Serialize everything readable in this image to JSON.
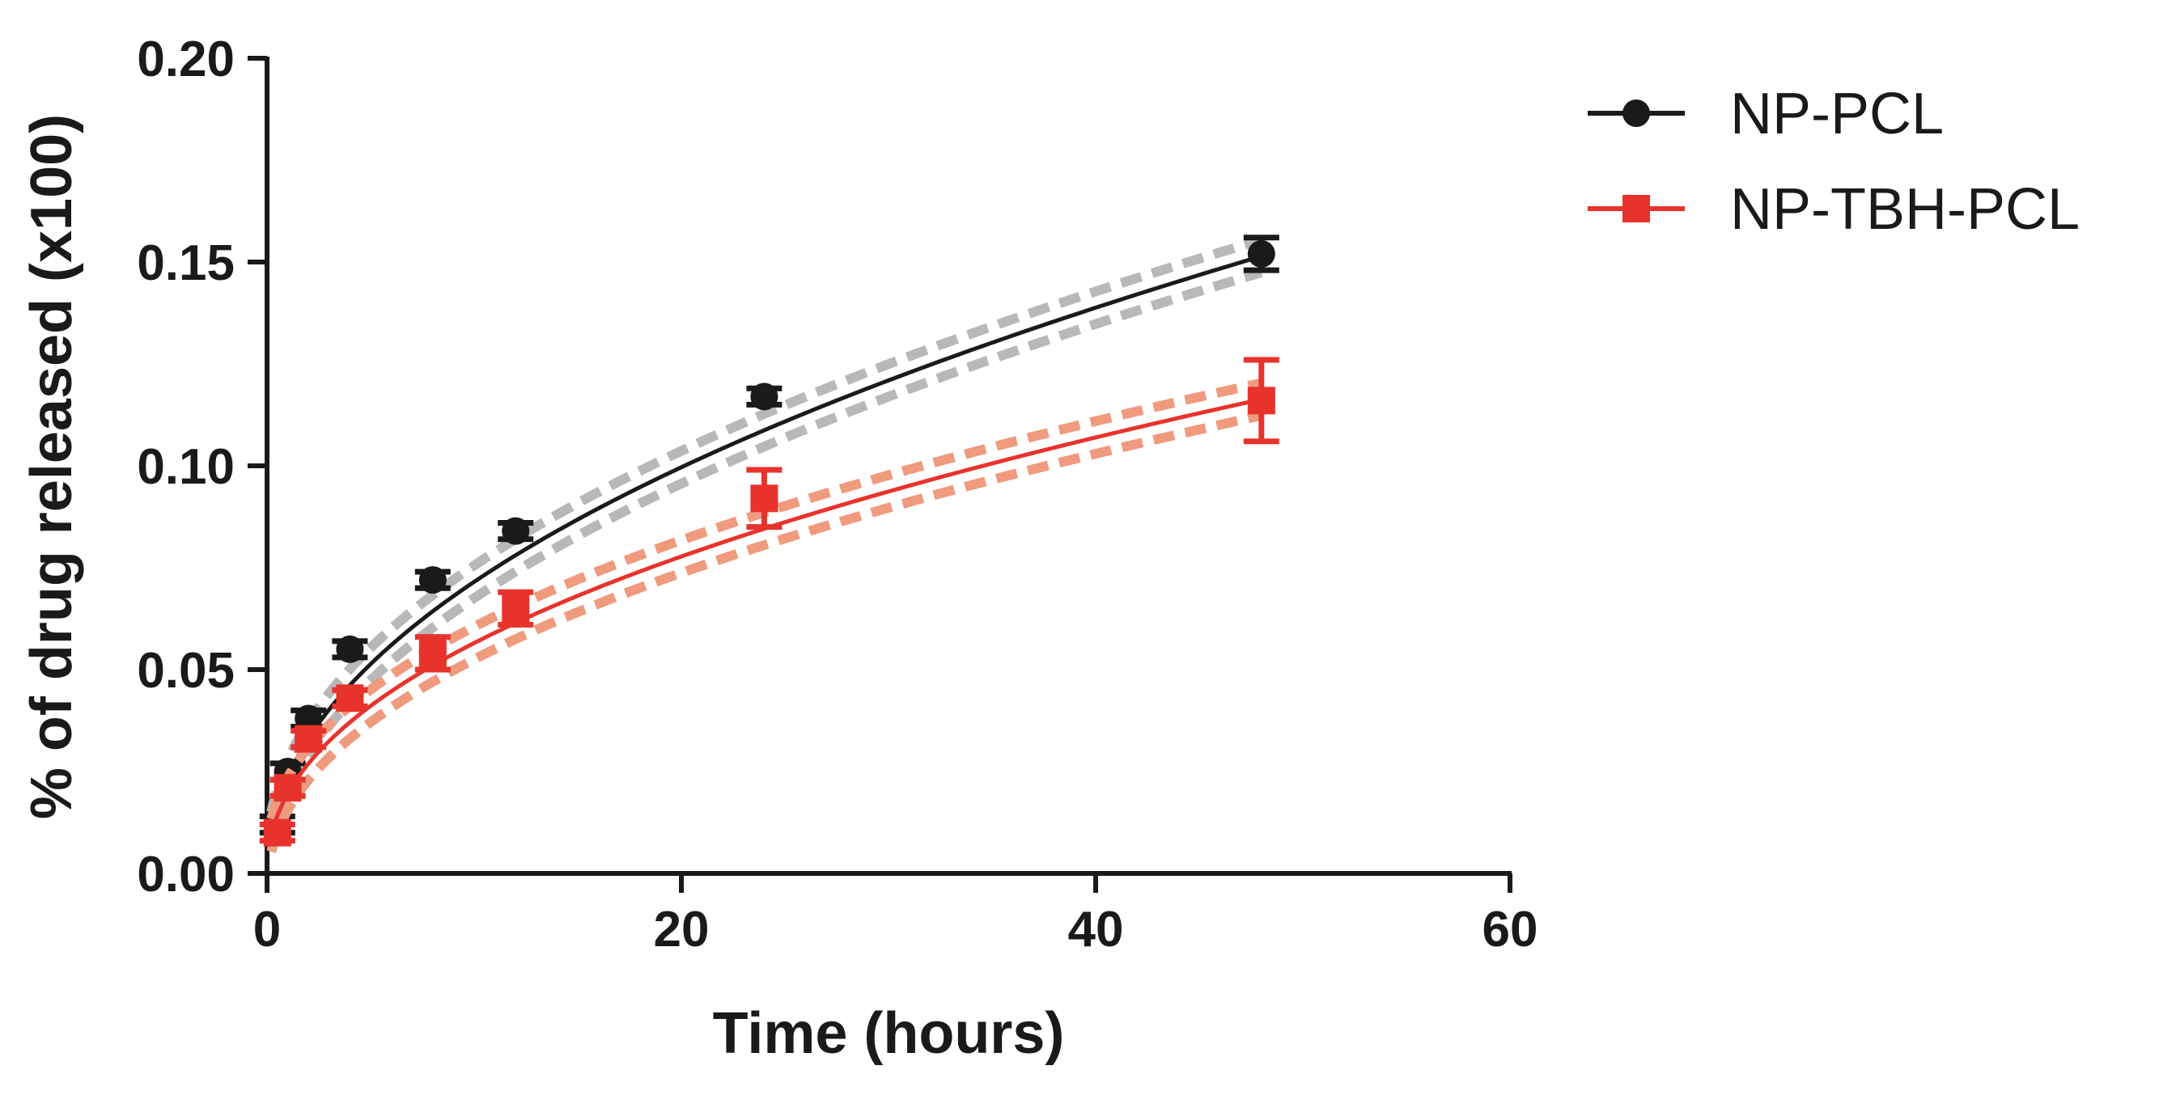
{
  "chart_data": {
    "type": "scatter",
    "title": "",
    "xlabel": "Time (hours)",
    "ylabel": "% of drug released (x100)",
    "xlim": [
      0,
      60
    ],
    "ylim": [
      0,
      0.2
    ],
    "x_ticks": [
      0,
      20,
      40,
      60
    ],
    "x_tick_labels": [
      "0",
      "20",
      "40",
      "60"
    ],
    "y_ticks": [
      0,
      0.05,
      0.1,
      0.15,
      0.2
    ],
    "y_tick_labels": [
      "0.00",
      "0.05",
      "0.10",
      "0.15",
      "0.20"
    ],
    "grid": false,
    "legend_position": "top-right, outside plot",
    "series": [
      {
        "name": "NP-PCL",
        "color": "#1a1a1a",
        "band_color": "#b8b8b8",
        "marker": "circle",
        "x": [
          0.5,
          1,
          2,
          4,
          8,
          12,
          24,
          48
        ],
        "y": [
          0.012,
          0.025,
          0.038,
          0.055,
          0.072,
          0.084,
          0.117,
          0.152
        ],
        "error": [
          0.002,
          0.002,
          0.002,
          0.002,
          0.002,
          0.002,
          0.002,
          0.004
        ],
        "fit": {
          "model": "power",
          "a": 0.0238,
          "b": 0.478,
          "band": 0.004
        }
      },
      {
        "name": "NP-TBH-PCL",
        "color": "#e8332c",
        "band_color": "#f09a7e",
        "marker": "square",
        "x": [
          0.5,
          1,
          2,
          4,
          8,
          12,
          24,
          48
        ],
        "y": [
          0.01,
          0.021,
          0.033,
          0.043,
          0.054,
          0.065,
          0.092,
          0.116
        ],
        "error": [
          0.002,
          0.002,
          0.002,
          0.002,
          0.004,
          0.004,
          0.007,
          0.01
        ],
        "fit": {
          "model": "power",
          "a": 0.0196,
          "b": 0.46,
          "band": 0.004
        }
      }
    ]
  }
}
